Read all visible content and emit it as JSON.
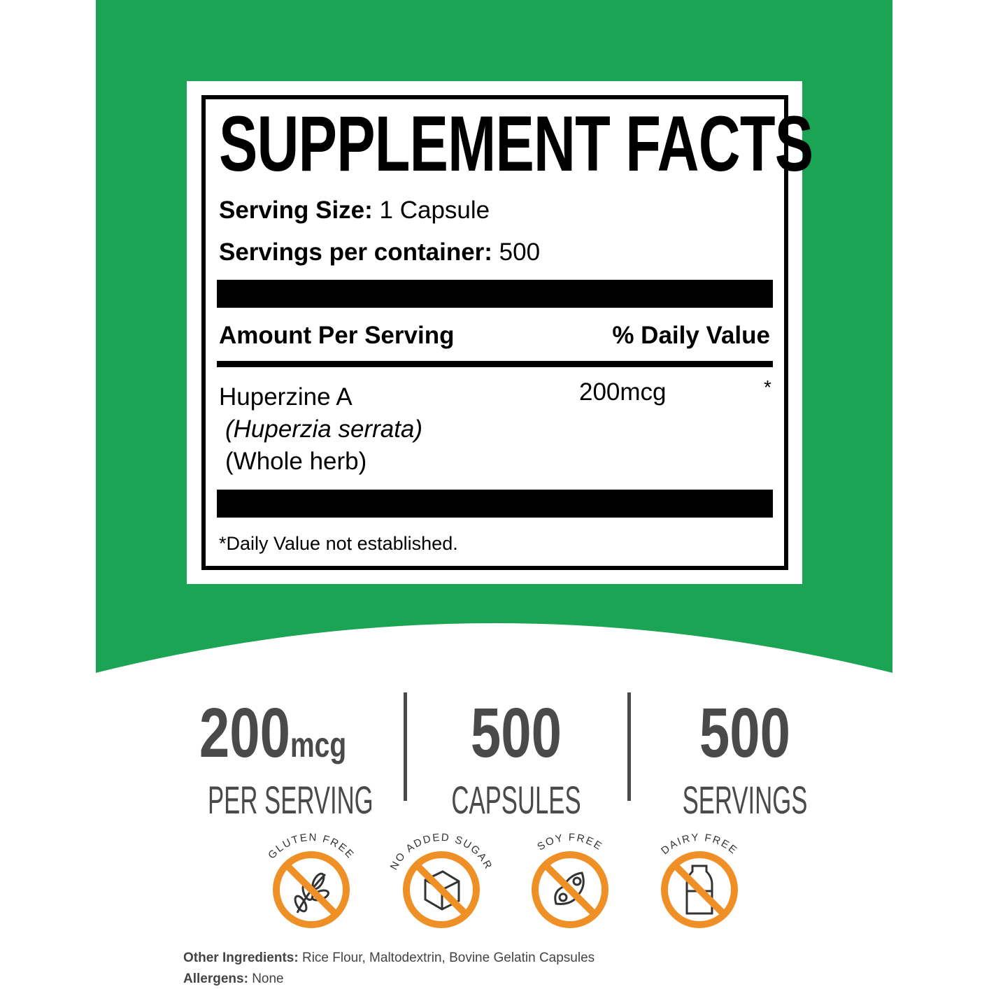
{
  "colors": {
    "green": "#1ca455",
    "orange": "#ef9026",
    "gray": "#4a4a4a"
  },
  "facts": {
    "title": "SUPPLEMENT FACTS",
    "serving_size_label": "Serving Size:",
    "serving_size_value": " 1 Capsule",
    "servings_label": "Servings per container:",
    "servings_value": " 500",
    "amount_header": "Amount Per Serving",
    "dv_header": "% Daily Value",
    "ingredient": {
      "name": "Huperzine A",
      "latin": "(Huperzia serrata)",
      "part": "(Whole herb)",
      "amount": "200mcg",
      "dv": "*"
    },
    "footnote": "*Daily Value not established."
  },
  "stats": [
    {
      "number": "200",
      "unit": "mcg",
      "label": "PER SERVING"
    },
    {
      "number": "500",
      "unit": "",
      "label": "CAPSULES"
    },
    {
      "number": "500",
      "unit": "",
      "label": "SERVINGS"
    }
  ],
  "badges": [
    {
      "label": "GLUTEN FREE",
      "icon": "wheat-icon"
    },
    {
      "label": "NO ADDED SUGAR",
      "icon": "sugar-cube-icon"
    },
    {
      "label": "SOY FREE",
      "icon": "soybean-icon"
    },
    {
      "label": "DAIRY FREE",
      "icon": "milk-bottle-icon"
    }
  ],
  "footer": {
    "other_label": "Other Ingredients:",
    "other_value": " Rice Flour, Maltodextrin, Bovine Gelatin Capsules",
    "allergens_label": "Allergens:",
    "allergens_value": " None"
  }
}
